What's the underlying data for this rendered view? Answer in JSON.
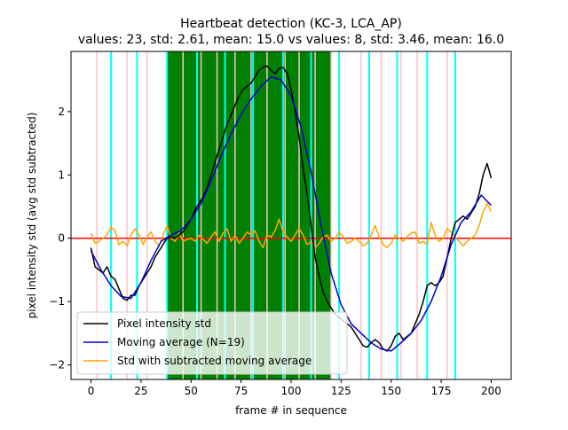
{
  "chart_data": {
    "type": "line",
    "title": "Heartbeat detection (KC-3, LCA_AP)",
    "subtitle": "values: 23, std: 2.61, mean: 15.0 vs values: 8, std: 3.46, mean: 16.0",
    "xlabel": "frame # in sequence",
    "ylabel": "pixel intensity std (avg std subtracted)",
    "xlim": [
      -10,
      210
    ],
    "ylim": [
      -2.23,
      2.95
    ],
    "x_ticks": [
      0,
      25,
      50,
      75,
      100,
      125,
      150,
      175,
      200
    ],
    "y_ticks": [
      -2,
      -1,
      0,
      1,
      2
    ],
    "x_tick_labels": [
      "0",
      "25",
      "50",
      "75",
      "100",
      "125",
      "150",
      "175",
      "200"
    ],
    "y_tick_labels": [
      "−2",
      "−1",
      "0",
      "1",
      "2"
    ],
    "grid": false,
    "legend_position": "lower-left",
    "shaded_region": {
      "x_start": 38,
      "x_end": 120,
      "color": "#008000"
    },
    "zero_line": {
      "y": 0,
      "color": "#ff0000"
    },
    "pink_lines": [
      3,
      18,
      28,
      38,
      46,
      55,
      63,
      72,
      80,
      88,
      97,
      104,
      112,
      120,
      135,
      145,
      155,
      163,
      178
    ],
    "cyan_lines": [
      10,
      23,
      38,
      53,
      67,
      81,
      96,
      110,
      124,
      139,
      153,
      168,
      182
    ],
    "colors": {
      "pink": "#ffc0cb",
      "cyan": "#00ffff",
      "black": "#000000",
      "blue": "#0000cd",
      "orange": "#ffa500"
    },
    "series": [
      {
        "name": "Pixel intensity std",
        "color": "#000000",
        "x": [
          0,
          2,
          4,
          6,
          8,
          10,
          12,
          14,
          16,
          18,
          20,
          22,
          24,
          26,
          28,
          30,
          32,
          34,
          36,
          38,
          40,
          42,
          44,
          46,
          48,
          50,
          52,
          54,
          56,
          58,
          60,
          62,
          64,
          66,
          68,
          70,
          72,
          74,
          76,
          78,
          80,
          82,
          84,
          86,
          88,
          90,
          92,
          94,
          96,
          98,
          100,
          102,
          104,
          106,
          108,
          110,
          112,
          114,
          116,
          118,
          120,
          122,
          124,
          126,
          128,
          130,
          132,
          134,
          136,
          138,
          140,
          142,
          144,
          146,
          148,
          150,
          152,
          154,
          156,
          158,
          160,
          162,
          164,
          166,
          168,
          170,
          172,
          174,
          176,
          178,
          180,
          182,
          184,
          186,
          188,
          190,
          192,
          194,
          196,
          198,
          200
        ],
        "y": [
          -0.15,
          -0.45,
          -0.5,
          -0.55,
          -0.45,
          -0.6,
          -0.65,
          -0.8,
          -0.95,
          -0.98,
          -0.9,
          -0.9,
          -0.75,
          -0.65,
          -0.55,
          -0.45,
          -0.3,
          -0.2,
          -0.1,
          0.0,
          0.02,
          0.0,
          0.05,
          0.1,
          0.2,
          0.3,
          0.45,
          0.55,
          0.65,
          0.8,
          1.0,
          1.2,
          1.4,
          1.6,
          1.8,
          1.95,
          2.1,
          2.25,
          2.35,
          2.4,
          2.45,
          2.55,
          2.65,
          2.7,
          2.72,
          2.65,
          2.6,
          2.68,
          2.7,
          2.6,
          2.35,
          2.0,
          1.6,
          1.1,
          0.7,
          0.2,
          -0.3,
          -0.6,
          -0.85,
          -1.0,
          -1.1,
          -1.2,
          -1.25,
          -1.3,
          -1.35,
          -1.4,
          -1.5,
          -1.6,
          -1.7,
          -1.72,
          -1.65,
          -1.6,
          -1.65,
          -1.75,
          -1.78,
          -1.7,
          -1.55,
          -1.5,
          -1.6,
          -1.55,
          -1.5,
          -1.35,
          -1.2,
          -1.0,
          -0.75,
          -0.7,
          -0.75,
          -0.7,
          -0.6,
          -0.3,
          0.0,
          0.25,
          0.3,
          0.35,
          0.3,
          0.4,
          0.5,
          0.7,
          1.0,
          1.18,
          0.95
        ]
      },
      {
        "name": "Moving average (N=19)",
        "color": "#0000cd",
        "x": [
          0,
          5,
          10,
          15,
          20,
          25,
          30,
          35,
          40,
          45,
          50,
          55,
          60,
          65,
          70,
          75,
          80,
          85,
          90,
          95,
          100,
          105,
          110,
          115,
          120,
          125,
          130,
          135,
          140,
          145,
          150,
          155,
          160,
          165,
          170,
          175,
          180,
          185,
          190,
          195,
          200
        ],
        "y": [
          -0.2,
          -0.5,
          -0.75,
          -0.92,
          -0.95,
          -0.7,
          -0.35,
          -0.05,
          0.05,
          0.12,
          0.3,
          0.55,
          0.9,
          1.3,
          1.65,
          1.95,
          2.2,
          2.4,
          2.55,
          2.5,
          2.25,
          1.75,
          1.05,
          0.2,
          -0.55,
          -1.05,
          -1.35,
          -1.5,
          -1.65,
          -1.75,
          -1.78,
          -1.65,
          -1.5,
          -1.3,
          -1.0,
          -0.6,
          -0.1,
          0.25,
          0.42,
          0.68,
          0.52
        ]
      },
      {
        "name": "Std with subtracted moving average",
        "color": "#ffa500",
        "x": [
          0,
          2,
          4,
          6,
          8,
          10,
          12,
          14,
          16,
          18,
          20,
          22,
          24,
          26,
          28,
          30,
          32,
          34,
          36,
          38,
          40,
          42,
          44,
          46,
          48,
          50,
          52,
          54,
          56,
          58,
          60,
          62,
          64,
          66,
          68,
          70,
          72,
          74,
          76,
          78,
          80,
          82,
          84,
          86,
          88,
          90,
          92,
          94,
          96,
          98,
          100,
          102,
          104,
          106,
          108,
          110,
          112,
          114,
          116,
          118,
          120,
          122,
          124,
          126,
          128,
          130,
          132,
          134,
          136,
          138,
          140,
          142,
          144,
          146,
          148,
          150,
          152,
          154,
          156,
          158,
          160,
          162,
          164,
          166,
          168,
          170,
          172,
          174,
          176,
          178,
          180,
          182,
          184,
          186,
          188,
          190,
          192,
          194,
          196,
          198,
          200
        ],
        "y": [
          0.08,
          -0.08,
          -0.05,
          0.0,
          0.05,
          0.18,
          0.12,
          -0.1,
          -0.05,
          -0.12,
          0.05,
          0.15,
          0.05,
          -0.1,
          0.02,
          0.1,
          -0.05,
          -0.12,
          0.05,
          0.2,
          0.0,
          -0.05,
          0.08,
          -0.05,
          -0.02,
          0.0,
          -0.05,
          0.05,
          -0.02,
          -0.08,
          0.02,
          0.1,
          -0.05,
          0.08,
          0.15,
          -0.05,
          0.05,
          -0.08,
          0.0,
          0.1,
          0.05,
          0.12,
          -0.05,
          -0.15,
          0.05,
          0.02,
          0.12,
          0.3,
          0.1,
          0.02,
          -0.05,
          0.05,
          0.15,
          0.05,
          -0.1,
          -0.05,
          -0.15,
          -0.08,
          0.02,
          0.05,
          -0.05,
          0.0,
          0.1,
          0.02,
          -0.08,
          -0.05,
          0.0,
          -0.05,
          -0.12,
          -0.08,
          0.05,
          0.2,
          0.02,
          -0.1,
          -0.15,
          -0.08,
          0.05,
          0.0,
          -0.05,
          0.03,
          0.08,
          0.1,
          -0.08,
          -0.05,
          -0.1,
          0.25,
          0.05,
          -0.05,
          0.0,
          0.15,
          0.1,
          0.02,
          -0.05,
          -0.12,
          -0.05,
          0.0,
          0.05,
          0.2,
          0.42,
          0.55,
          0.42
        ]
      }
    ]
  }
}
